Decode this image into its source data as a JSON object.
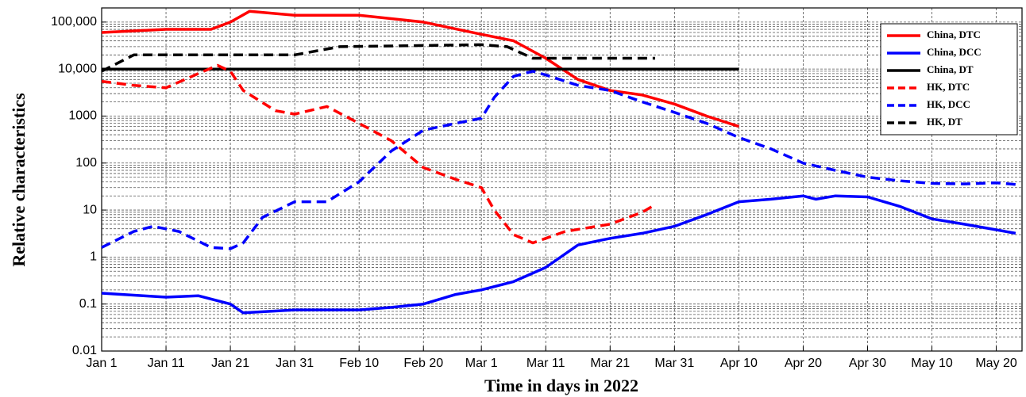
{
  "chart_data": {
    "type": "line",
    "log_y": true,
    "grid": true,
    "legend": "upper right",
    "xlabel": "Time in days in 2022",
    "ylabel": "Relative characteristics",
    "xlim": [
      0,
      143
    ],
    "ylim": [
      0.01,
      200000
    ],
    "xticks": [
      {
        "value": 0,
        "label": "Jan 1"
      },
      {
        "value": 10,
        "label": "Jan 11"
      },
      {
        "value": 20,
        "label": "Jan 21"
      },
      {
        "value": 30,
        "label": "Jan 31"
      },
      {
        "value": 40,
        "label": "Feb 10"
      },
      {
        "value": 50,
        "label": "Feb 20"
      },
      {
        "value": 59,
        "label": "Mar 1"
      },
      {
        "value": 69,
        "label": "Mar 11"
      },
      {
        "value": 79,
        "label": "Mar 21"
      },
      {
        "value": 89,
        "label": "Mar 31"
      },
      {
        "value": 99,
        "label": "Apr 10"
      },
      {
        "value": 109,
        "label": "Apr 20"
      },
      {
        "value": 119,
        "label": "Apr 30"
      },
      {
        "value": 129,
        "label": "May 10"
      },
      {
        "value": 139,
        "label": "May 20"
      }
    ],
    "yticks": [
      0.01,
      0.1,
      1,
      10,
      100,
      1000,
      {
        "value": 10000,
        "label": "10,000"
      },
      {
        "value": 100000,
        "label": "100,000"
      }
    ],
    "series": [
      {
        "name": "China, DTC",
        "color": "#ff0000",
        "dash": false,
        "x": [
          0,
          10,
          17,
          20,
          23,
          30,
          40,
          50,
          59,
          64,
          69,
          74,
          79,
          84,
          89,
          94,
          99
        ],
        "values": [
          60000,
          70000,
          70000,
          100000,
          170000,
          140000,
          140000,
          100000,
          55000,
          40000,
          17000,
          6000,
          3500,
          2800,
          1800,
          1000,
          600
        ]
      },
      {
        "name": "China, DCC",
        "color": "#0000ff",
        "dash": false,
        "x": [
          0,
          10,
          15,
          20,
          22,
          30,
          40,
          45,
          50,
          55,
          59,
          64,
          69,
          74,
          79,
          84,
          89,
          94,
          99,
          104,
          109,
          111,
          114,
          119,
          124,
          129,
          134,
          139,
          142
        ],
        "values": [
          0.17,
          0.14,
          0.15,
          0.1,
          0.065,
          0.075,
          0.075,
          0.085,
          0.1,
          0.16,
          0.2,
          0.3,
          0.6,
          1.8,
          2.5,
          3.2,
          4.5,
          8,
          15,
          17,
          20,
          17,
          20,
          19,
          12,
          6.5,
          5,
          3.8,
          3.2
        ]
      },
      {
        "name": "China, DT",
        "color": "#000000",
        "dash": false,
        "x": [
          0,
          99
        ],
        "values": [
          10000,
          10000
        ]
      },
      {
        "name": "HK, DTC",
        "color": "#ff0000",
        "dash": true,
        "x": [
          0,
          5,
          10,
          15,
          18,
          20,
          22,
          27,
          30,
          35,
          40,
          45,
          50,
          55,
          59,
          61,
          64,
          67,
          69,
          72,
          79,
          84,
          86
        ],
        "values": [
          5500,
          4500,
          4000,
          8000,
          12000,
          9000,
          3500,
          1300,
          1100,
          1600,
          700,
          300,
          80,
          45,
          30,
          10,
          3,
          2,
          2.5,
          3.5,
          5,
          9,
          13
        ]
      },
      {
        "name": "HK, DCC",
        "color": "#0000ff",
        "dash": true,
        "x": [
          0,
          5,
          8,
          12,
          17,
          20,
          22,
          25,
          30,
          35,
          40,
          45,
          50,
          55,
          59,
          61,
          64,
          67,
          69,
          74,
          79,
          84,
          89,
          94,
          99,
          104,
          109,
          114,
          119,
          124,
          129,
          134,
          139,
          142
        ],
        "values": [
          1.6,
          3.5,
          4.5,
          3.5,
          1.6,
          1.5,
          2,
          7,
          15,
          15,
          40,
          180,
          500,
          700,
          900,
          2500,
          7000,
          9000,
          7500,
          4500,
          3500,
          2000,
          1200,
          700,
          350,
          200,
          100,
          70,
          50,
          42,
          37,
          36,
          38,
          35
        ]
      },
      {
        "name": "HK, DT",
        "color": "#000000",
        "dash": true,
        "x": [
          0,
          5,
          30,
          37,
          59,
          63,
          67,
          86
        ],
        "values": [
          9000,
          20000,
          20000,
          30000,
          33000,
          30000,
          17000,
          17000
        ]
      }
    ]
  }
}
